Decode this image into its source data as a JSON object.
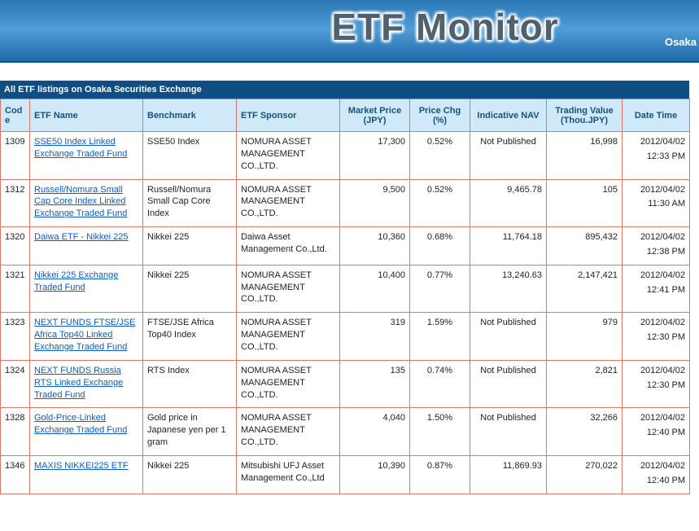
{
  "banner": {
    "title": "ETF Monitor",
    "right_text": "Osaka"
  },
  "section_bar": {
    "title": "All ETF listings on Osaka Securities Exchange"
  },
  "colors": {
    "banner_blue": "#2a77b4",
    "section_bar_navy": "#0e4e84",
    "header_bg": "#cfe9f8",
    "header_text": "#16527e",
    "grid_border_red": "#e0756a",
    "link_blue": "#0b5cc4",
    "price_change_red": "#cc0000"
  },
  "table": {
    "columns": [
      "Code",
      "ETF Name",
      "Benchmark",
      "ETF Sponsor",
      "Market Price (JPY)",
      "Price Chg (%)",
      "Indicative NAV",
      "Trading Value (Thou.JPY)",
      "Date Time"
    ],
    "rows": [
      {
        "code": "1309",
        "name": "SSE50 Index Linked Exchange Traded Fund",
        "benchmark": "SSE50 Index",
        "sponsor": "NOMURA ASSET MANAGEMENT CO.,LTD.",
        "market_price": "17,300",
        "price_chg": "0.52%",
        "indicative_nav": "Not Published",
        "trading_value": "16,998",
        "date": "2012/04/02",
        "time": "12:33 PM"
      },
      {
        "code": "1312",
        "name": "Russell/Nomura Small Cap Core Index Linked Exchange Traded Fund",
        "benchmark": "Russell/Nomura Small Cap Core Index",
        "sponsor": "NOMURA ASSET MANAGEMENT CO.,LTD.",
        "market_price": "9,500",
        "price_chg": "0.52%",
        "indicative_nav": "9,465.78",
        "trading_value": "105",
        "date": "2012/04/02",
        "time": "11:30 AM"
      },
      {
        "code": "1320",
        "name": "Daiwa ETF - Nikkei 225",
        "benchmark": "Nikkei 225",
        "sponsor": "Daiwa Asset Management Co.,Ltd.",
        "market_price": "10,360",
        "price_chg": "0.68%",
        "indicative_nav": "11,764.18",
        "trading_value": "895,432",
        "date": "2012/04/02",
        "time": "12:38 PM"
      },
      {
        "code": "1321",
        "name": "Nikkei 225 Exchange Traded Fund",
        "benchmark": "Nikkei 225",
        "sponsor": "NOMURA ASSET MANAGEMENT CO.,LTD.",
        "market_price": "10,400",
        "price_chg": "0.77%",
        "indicative_nav": "13,240.63",
        "trading_value": "2,147,421",
        "date": "2012/04/02",
        "time": "12:41 PM"
      },
      {
        "code": "1323",
        "name": "NEXT FUNDS FTSE/JSE Africa Top40 Linked Exchange Traded Fund",
        "benchmark": "FTSE/JSE Africa Top40 Index",
        "sponsor": "NOMURA ASSET MANAGEMENT CO.,LTD.",
        "market_price": "319",
        "price_chg": "1.59%",
        "indicative_nav": "Not Published",
        "trading_value": "979",
        "date": "2012/04/02",
        "time": "12:30 PM"
      },
      {
        "code": "1324",
        "name": "NEXT FUNDS Russia RTS Linked Exchange Traded Fund",
        "benchmark": "RTS Index",
        "sponsor": "NOMURA ASSET MANAGEMENT CO.,LTD.",
        "market_price": "135",
        "price_chg": "0.74%",
        "indicative_nav": "Not Published",
        "trading_value": "2,821",
        "date": "2012/04/02",
        "time": "12:30 PM"
      },
      {
        "code": "1328",
        "name": "Gold-Price-Linked Exchange Traded Fund",
        "benchmark": "Gold price in Japanese yen per 1 gram",
        "sponsor": "NOMURA ASSET MANAGEMENT CO.,LTD.",
        "market_price": "4,040",
        "price_chg": "1.50%",
        "indicative_nav": "Not Published",
        "trading_value": "32,266",
        "date": "2012/04/02",
        "time": "12:40 PM"
      },
      {
        "code": "1346",
        "name": "MAXIS NIKKEI225 ETF",
        "benchmark": "Nikkei 225",
        "sponsor": "Mitsubishi UFJ Asset Management Co.,Ltd",
        "market_price": "10,390",
        "price_chg": "0.87%",
        "indicative_nav": "11,869.93",
        "trading_value": "270,022",
        "date": "2012/04/02",
        "time": "12:40 PM"
      }
    ]
  }
}
